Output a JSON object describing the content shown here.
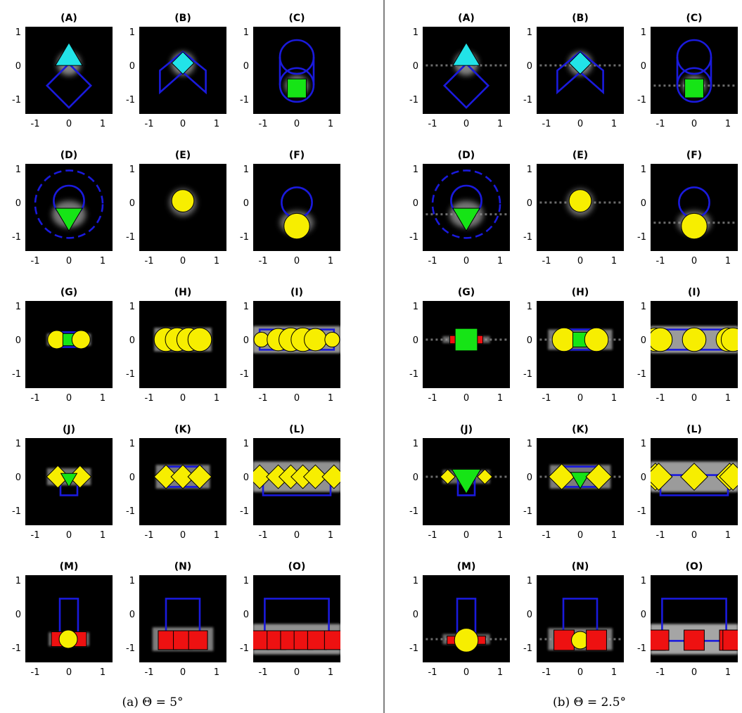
{
  "colors": {
    "background": "#000000",
    "outline": "#1a1adc",
    "cyan": "#22e3e8",
    "green": "#16e416",
    "yellow": "#f7ee00",
    "red": "#ee1111"
  },
  "tick_values": [
    "-1",
    "0",
    "1"
  ],
  "panel_columns": [
    {
      "caption": "(a) Θ = 5°",
      "panels": [
        {
          "label": "(A)",
          "scene": "triangle_over_diamond",
          "glow": "low"
        },
        {
          "label": "(B)",
          "scene": "diamond_over_chevron",
          "glow": "low"
        },
        {
          "label": "(C)",
          "scene": "square_in_circles",
          "glow": "low"
        },
        {
          "label": "(D)",
          "scene": "downtriangle_dashed_circles",
          "glow": "low"
        },
        {
          "label": "(E)",
          "scene": "circle_center",
          "glow": "low"
        },
        {
          "label": "(F)",
          "scene": "circle_below_ring",
          "glow": "low"
        },
        {
          "label": "(G)",
          "scene": "G_a",
          "glow": "low"
        },
        {
          "label": "(H)",
          "scene": "H_a",
          "glow": "low"
        },
        {
          "label": "(I)",
          "scene": "I_a",
          "glow": "low"
        },
        {
          "label": "(J)",
          "scene": "J_a",
          "glow": "low"
        },
        {
          "label": "(K)",
          "scene": "K_a",
          "glow": "low"
        },
        {
          "label": "(L)",
          "scene": "L_a",
          "glow": "low"
        },
        {
          "label": "(M)",
          "scene": "M_a",
          "glow": "low"
        },
        {
          "label": "(N)",
          "scene": "N_a",
          "glow": "low"
        },
        {
          "label": "(O)",
          "scene": "O_a",
          "glow": "low"
        }
      ]
    },
    {
      "caption": "(b) Θ = 2.5°",
      "panels": [
        {
          "label": "(A)",
          "scene": "triangle_over_diamond",
          "glow": "high"
        },
        {
          "label": "(B)",
          "scene": "diamond_over_chevron",
          "glow": "high"
        },
        {
          "label": "(C)",
          "scene": "square_in_circles",
          "glow": "high"
        },
        {
          "label": "(D)",
          "scene": "downtriangle_dashed_circles",
          "glow": "high"
        },
        {
          "label": "(E)",
          "scene": "circle_center",
          "glow": "high"
        },
        {
          "label": "(F)",
          "scene": "circle_below_ring",
          "glow": "high"
        },
        {
          "label": "(G)",
          "scene": "G_b",
          "glow": "high"
        },
        {
          "label": "(H)",
          "scene": "H_b",
          "glow": "high"
        },
        {
          "label": "(I)",
          "scene": "I_b",
          "glow": "high"
        },
        {
          "label": "(J)",
          "scene": "J_b",
          "glow": "high"
        },
        {
          "label": "(K)",
          "scene": "K_b",
          "glow": "high"
        },
        {
          "label": "(L)",
          "scene": "L_b",
          "glow": "high"
        },
        {
          "label": "(M)",
          "scene": "M_b",
          "glow": "high"
        },
        {
          "label": "(N)",
          "scene": "N_b",
          "glow": "high"
        },
        {
          "label": "(O)",
          "scene": "O_b",
          "glow": "high"
        }
      ]
    }
  ]
}
